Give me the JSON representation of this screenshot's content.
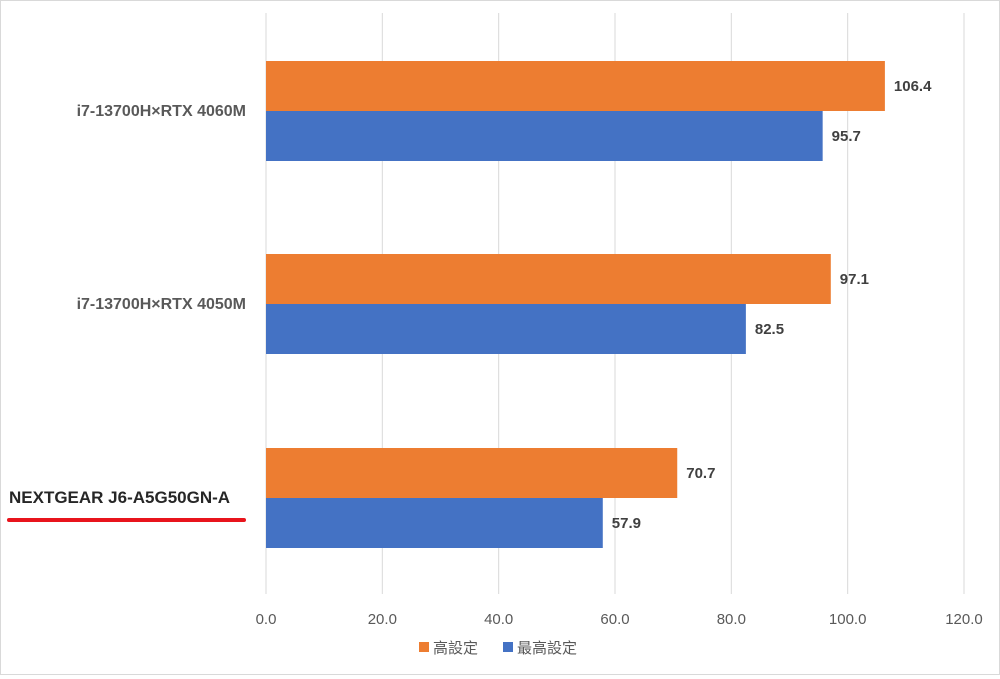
{
  "chart_data": {
    "type": "bar",
    "orientation": "horizontal",
    "categories": [
      "i7-13700H×RTX 4060M",
      "i7-13700H×RTX 4050M",
      "NEXTGEAR J6-A5G50GN-A"
    ],
    "highlighted_category": "NEXTGEAR J6-A5G50GN-A",
    "series": [
      {
        "name": "高設定",
        "color": "#ed7d31",
        "values": [
          106.4,
          97.1,
          70.7
        ]
      },
      {
        "name": "最高設定",
        "color": "#4472c4",
        "values": [
          95.7,
          82.5,
          57.9
        ]
      }
    ],
    "xlim": [
      0,
      120
    ],
    "xticks": [
      "0.0",
      "20.0",
      "40.0",
      "60.0",
      "80.0",
      "100.0",
      "120.0"
    ],
    "grid": true,
    "legend_position": "bottom",
    "highlight_color": "#e8141c"
  }
}
